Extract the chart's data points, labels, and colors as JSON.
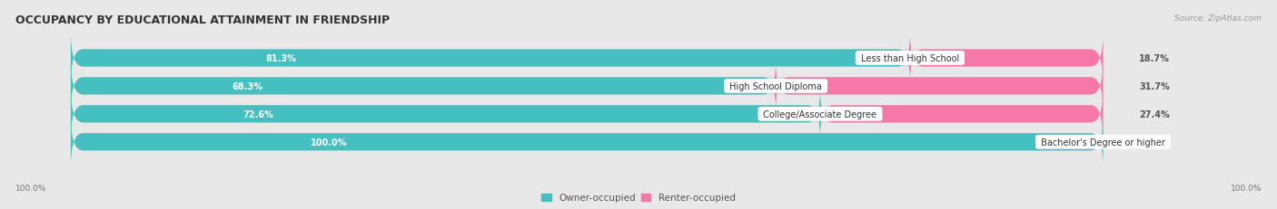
{
  "title": "OCCUPANCY BY EDUCATIONAL ATTAINMENT IN FRIENDSHIP",
  "source": "Source: ZipAtlas.com",
  "categories": [
    "Less than High School",
    "High School Diploma",
    "College/Associate Degree",
    "Bachelor's Degree or higher"
  ],
  "owner_values": [
    81.3,
    68.3,
    72.6,
    100.0
  ],
  "renter_values": [
    18.7,
    31.7,
    27.4,
    0.0
  ],
  "owner_color": "#45BFBF",
  "renter_color": "#F478A8",
  "renter_color_light": "#F8B8CF",
  "bg_color": "#e8e8e8",
  "bar_bg_color": "#d8d8d8",
  "title_fontsize": 9,
  "bar_height": 0.62,
  "total_width": 100
}
